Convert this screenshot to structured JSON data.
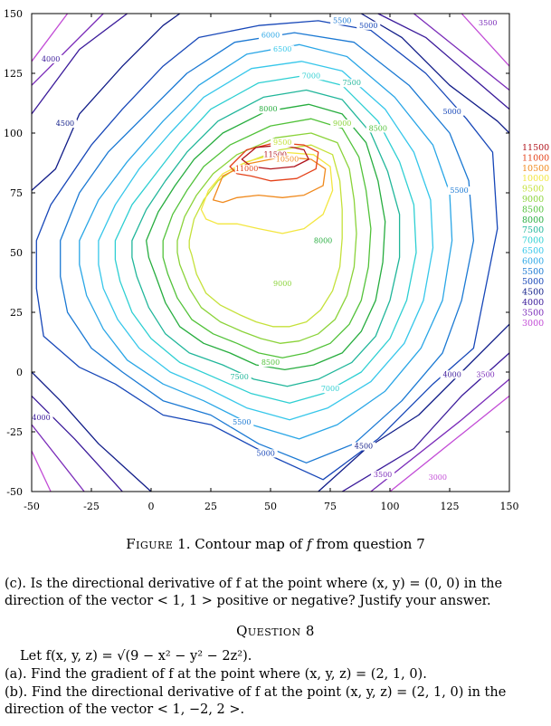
{
  "chart_data": {
    "type": "contour",
    "title": "",
    "xlabel": "",
    "ylabel": "",
    "xlim": [
      -50,
      150
    ],
    "ylim": [
      -50,
      150
    ],
    "x_ticks": [
      "-50",
      "-25",
      "0",
      "25",
      "50",
      "75",
      "100",
      "125",
      "150"
    ],
    "y_ticks": [
      "150",
      "125",
      "100",
      "75",
      "50",
      "25",
      "0",
      "-25",
      "-50"
    ],
    "grid": false,
    "legend_position": "right",
    "levels": [
      {
        "value": "11500",
        "color": "#b0141c"
      },
      {
        "value": "11000",
        "color": "#e4421a"
      },
      {
        "value": "10500",
        "color": "#f08a1e"
      },
      {
        "value": "10000",
        "color": "#f3e640"
      },
      {
        "value": "9500",
        "color": "#c5e13a"
      },
      {
        "value": "9000",
        "color": "#8bd33a"
      },
      {
        "value": "8500",
        "color": "#52c23a"
      },
      {
        "value": "8000",
        "color": "#27ad3f"
      },
      {
        "value": "7500",
        "color": "#21b69a"
      },
      {
        "value": "7000",
        "color": "#2ecfd2"
      },
      {
        "value": "6500",
        "color": "#37c7ea"
      },
      {
        "value": "6000",
        "color": "#2aa6e6"
      },
      {
        "value": "5500",
        "color": "#1b79d3"
      },
      {
        "value": "5000",
        "color": "#1747b8"
      },
      {
        "value": "4500",
        "color": "#101c88"
      },
      {
        "value": "4000",
        "color": "#3a1a9a"
      },
      {
        "value": "3500",
        "color": "#7a2bb9"
      },
      {
        "value": "3000",
        "color": "#c24bd6"
      }
    ],
    "peak_label": "11500",
    "inline_labels": [
      "3500",
      "4000",
      "4500",
      "5000",
      "5500",
      "6000",
      "6500",
      "7000",
      "7500",
      "8000",
      "8500",
      "9000",
      "9500",
      "10000",
      "10500",
      "11000",
      "11500"
    ]
  },
  "caption": {
    "figure_word": "Figure",
    "number": "1.",
    "text_before": "Contour map of",
    "var": "f",
    "text_after": "from question 7"
  },
  "part_c": {
    "lines": [
      "(c). Is the directional derivative of f at the point where (x, y) = (0, 0) in the",
      "direction of the vector < 1, 1 > positive or negative? Justify your answer."
    ]
  },
  "question8": {
    "heading": "Question 8",
    "let_line": "Let f(x, y, z) = √(9 − x² − y² − 2z²).",
    "part_a": "(a). Find the gradient of f at the point where (x, y, z) = (2, 1, 0).",
    "part_b_lines": [
      "(b). Find the directional derivative of f at the point (x, y, z) = (2, 1, 0) in the",
      "direction of the vector < 1, −2, 2 >."
    ]
  }
}
